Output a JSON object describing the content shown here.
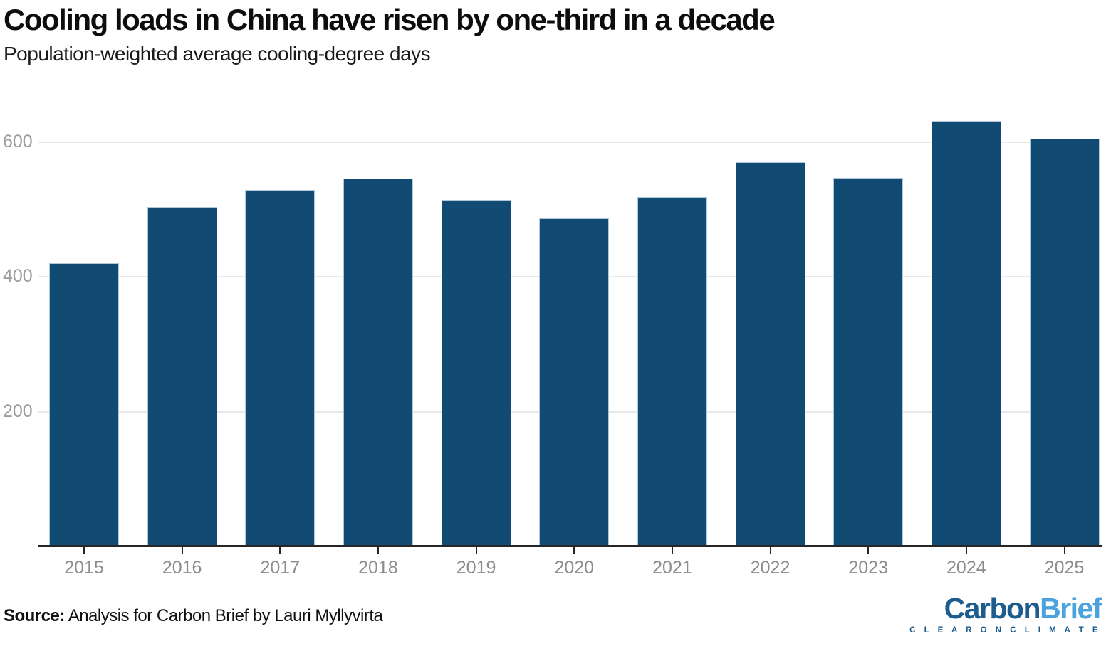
{
  "header": {
    "title": "Cooling loads in China have risen by one-third in a decade",
    "subtitle": "Population-weighted average cooling-degree days"
  },
  "chart_data": {
    "type": "bar",
    "title": "Cooling loads in China have risen by one-third in a decade",
    "subtitle": "Population-weighted average cooling-degree days",
    "categories": [
      "2015",
      "2016",
      "2017",
      "2018",
      "2019",
      "2020",
      "2021",
      "2022",
      "2023",
      "2024",
      "2025"
    ],
    "values": [
      420,
      504,
      529,
      546,
      514,
      487,
      519,
      570,
      547,
      632,
      605
    ],
    "xlabel": "",
    "ylabel": "Population-weighted average cooling-degree days",
    "ylim": [
      0,
      660
    ],
    "yticks": [
      200,
      400,
      600
    ],
    "grid": "horizontal",
    "legend": "none",
    "bar_color": "#114a73",
    "bar_border_color": "#aec8da",
    "grid_color": "#e8e8e8",
    "axis_color": "#262626",
    "tick_label_color": "#8c8c8c"
  },
  "footer": {
    "source_label": "Source:",
    "source_text": " Analysis for Carbon Brief by Lauri Myllyvirta"
  },
  "logo": {
    "part1": "Carbon",
    "part2": "Brief",
    "tagline": "C L E A R   O N   C L I M A T E",
    "dark_color": "#1d5d8e",
    "light_color": "#4aa3dc"
  }
}
